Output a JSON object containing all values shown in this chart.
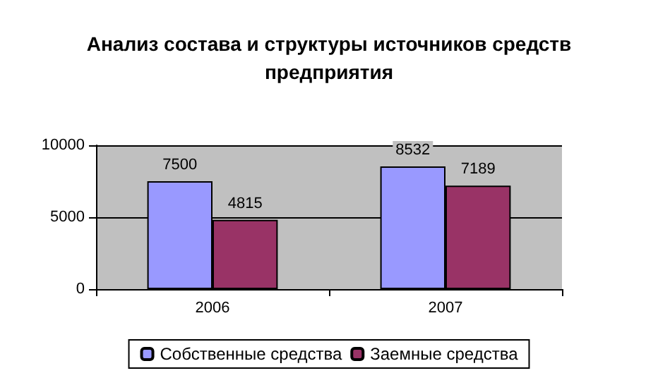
{
  "chart_data": {
    "type": "bar",
    "title": "Анализ состава и структуры источников средств\nпредприятия",
    "categories": [
      "2006",
      "2007"
    ],
    "series": [
      {
        "name": "Собственные средства",
        "color": "#9999ff",
        "values": [
          7500,
          8532
        ]
      },
      {
        "name": "Заемные средства",
        "color": "#993366",
        "values": [
          4815,
          7189
        ]
      }
    ],
    "ylim": [
      0,
      10000
    ],
    "yticks": [
      0,
      5000,
      10000
    ],
    "grid": "y",
    "legend": "bottom",
    "data_labels": true
  }
}
